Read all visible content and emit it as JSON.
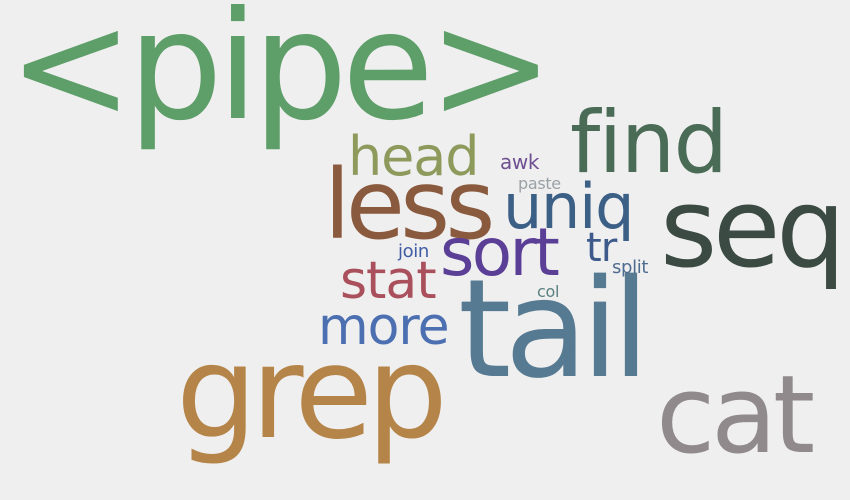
{
  "background": "#efefef",
  "words": {
    "pipe": {
      "text": "<pipe>",
      "color": "#5d9e69"
    },
    "find": {
      "text": "find",
      "color": "#4a6b56"
    },
    "head": {
      "text": "head",
      "color": "#8e9a5c"
    },
    "awk": {
      "text": "awk",
      "color": "#6e4f92"
    },
    "paste": {
      "text": "paste",
      "color": "#9aa1a6"
    },
    "less": {
      "text": "less",
      "color": "#8a5a3e"
    },
    "uniq": {
      "text": "uniq",
      "color": "#3c5f86"
    },
    "seq": {
      "text": "seq",
      "color": "#3b4a43"
    },
    "join": {
      "text": "join",
      "color": "#3f5ca4"
    },
    "sort": {
      "text": "sort",
      "color": "#5b3f97"
    },
    "tr": {
      "text": "tr",
      "color": "#3d5a8a"
    },
    "split": {
      "text": "split",
      "color": "#4f6c90"
    },
    "stat": {
      "text": "stat",
      "color": "#a9505c"
    },
    "col": {
      "text": "col",
      "color": "#5a8080"
    },
    "more": {
      "text": "more",
      "color": "#4b6fb0"
    },
    "tail": {
      "text": "tail",
      "color": "#557a92"
    },
    "grep": {
      "text": "grep",
      "color": "#b58448"
    },
    "cat": {
      "text": "cat",
      "color": "#918a8c"
    }
  }
}
